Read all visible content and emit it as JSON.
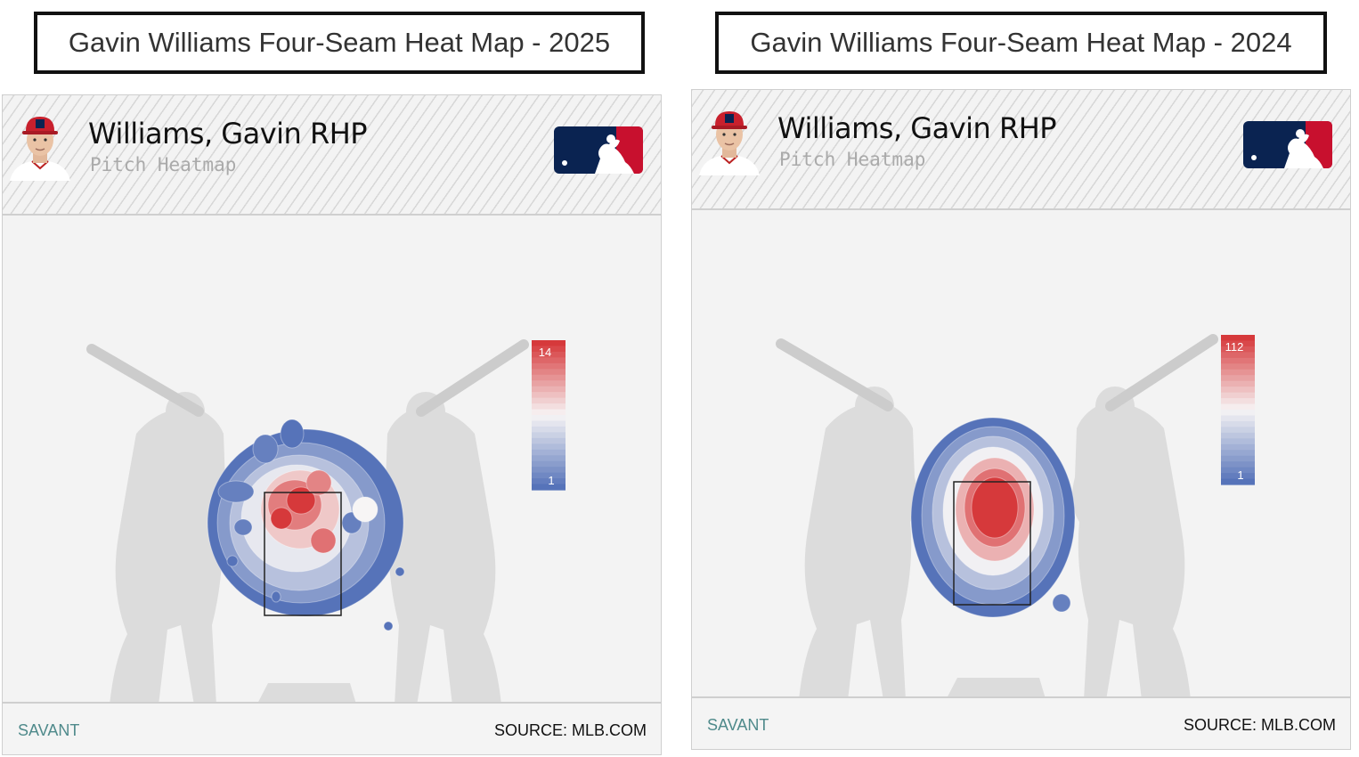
{
  "panels": [
    {
      "title": "Gavin Williams Four-Seam Heat Map - 2025",
      "player_name": "Williams, Gavin RHP",
      "subtitle": "Pitch Heatmap",
      "footer_left": "SAVANT",
      "footer_right": "SOURCE: MLB.COM",
      "icons": {
        "avatar": "player-headshot-icon",
        "logo": "mlb-logo-icon"
      },
      "chart_data": {
        "type": "heatmap",
        "legend": {
          "max_label": "14",
          "min_label": "1",
          "max": 14,
          "min": 1,
          "placement": "right"
        },
        "strike_zone": true,
        "distribution": "scattered; peak upper-left of zone, secondary hot spots center-right and lower-middle",
        "colors": {
          "high": "#d6393b",
          "mid": "#f7f5f5",
          "low": "#5673b9"
        }
      }
    },
    {
      "title": "Gavin Williams Four-Seam Heat Map - 2024",
      "player_name": "Williams, Gavin RHP",
      "subtitle": "Pitch Heatmap",
      "footer_left": "SAVANT",
      "footer_right": "SOURCE: MLB.COM",
      "icons": {
        "avatar": "player-headshot-icon",
        "logo": "mlb-logo-icon"
      },
      "chart_data": {
        "type": "heatmap",
        "legend": {
          "max_label": "112",
          "min_label": "1",
          "max": 112,
          "min": 1,
          "placement": "right"
        },
        "strike_zone": true,
        "distribution": "single concentrated peak in upper-middle of zone",
        "colors": {
          "high": "#d6393b",
          "mid": "#f7f5f5",
          "low": "#5673b9"
        }
      }
    }
  ],
  "colors": {
    "batter_silhouette": "#dcdcdc",
    "bat": "#cccccc",
    "mlb_navy": "#0a2351",
    "mlb_red": "#c8102e",
    "savant_teal": "#4f8a8b"
  }
}
